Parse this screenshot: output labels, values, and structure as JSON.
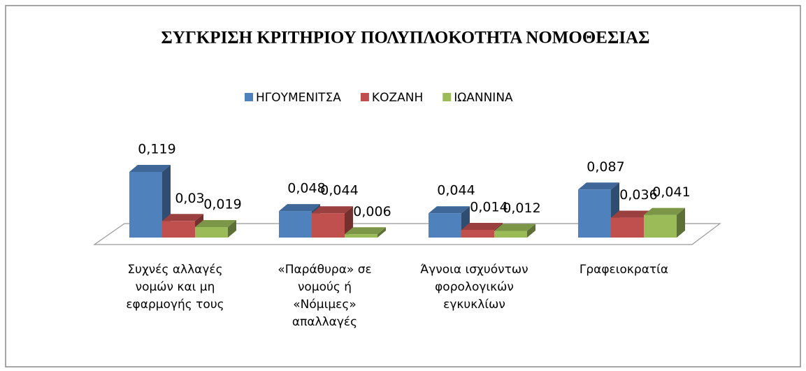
{
  "chart_data": {
    "type": "bar3d",
    "title": "ΣΥΓΚΡΙΣΗ ΚΡΙΤΗΡΙΟΥ ΠΟΛΥΠΛΟΚΟΤΗΤΑ ΝΟΜΟΘΕΣΙΑΣ",
    "categories": [
      "Συχνές αλλαγές νομών και μη εφαρμογής τους",
      "«Παράθυρα»  σε νομούς ή «Νόμιμες» απαλλαγές",
      "Άγνοια ισχυόντων φορολογικών εγκυκλίων",
      "Γραφειοκρατία"
    ],
    "series": [
      {
        "name": "ΗΓΟΥΜΕΝΙΤΣΑ",
        "color": "#4f81bd",
        "values": [
          0.119,
          0.048,
          0.044,
          0.087
        ],
        "value_labels": [
          "0,119",
          "0,048",
          "0,044",
          "0,087"
        ]
      },
      {
        "name": "ΚΟΖΑΝΗ",
        "color": "#c0504d",
        "values": [
          0.03,
          0.044,
          0.014,
          0.036
        ],
        "value_labels": [
          "0,03",
          "0,044",
          "0,014",
          "0,036"
        ]
      },
      {
        "name": "ΙΩΑΝΝΙΝΑ",
        "color": "#9bbb59",
        "values": [
          0.019,
          0.006,
          0.012,
          0.041
        ],
        "value_labels": [
          "0,019",
          "0,006",
          "0,012",
          "0,041"
        ]
      }
    ],
    "legend": "top"
  }
}
